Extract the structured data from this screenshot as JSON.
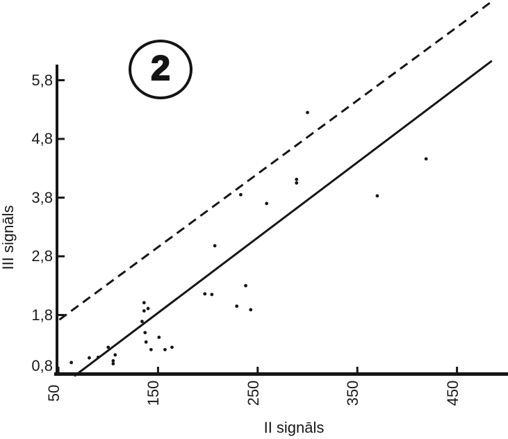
{
  "figure": {
    "badge_label": "2"
  },
  "chart_data": {
    "type": "scatter",
    "title": "",
    "xlabel": "II signāls",
    "ylabel": "III signāls",
    "grid": false,
    "legend": null,
    "ink_color": "#161616",
    "xlim": [
      46,
      501
    ],
    "ylim": [
      0.8,
      6.1
    ],
    "x_ticks": [
      {
        "value": 50,
        "label": "50"
      },
      {
        "value": 150,
        "label": "150"
      },
      {
        "value": 250,
        "label": "250"
      },
      {
        "value": 350,
        "label": "350"
      },
      {
        "value": 450,
        "label": "450"
      }
    ],
    "y_ticks": [
      {
        "value": 5.8,
        "label": "5,8"
      },
      {
        "value": 4.8,
        "label": "4,8"
      },
      {
        "value": 3.8,
        "label": "3,8"
      },
      {
        "value": 2.8,
        "label": "2,8"
      },
      {
        "value": 1.8,
        "label": "1,8"
      },
      {
        "value": 0.8,
        "label": "0,8"
      }
    ],
    "points": [
      [
        63,
        0.99
      ],
      [
        81,
        1.07
      ],
      [
        90,
        1.08
      ],
      [
        100,
        1.25
      ],
      [
        105,
        1.02
      ],
      [
        105,
        0.97
      ],
      [
        107,
        1.12
      ],
      [
        134,
        1.69
      ],
      [
        136,
        2.01
      ],
      [
        136,
        1.87
      ],
      [
        137,
        1.5
      ],
      [
        138,
        1.34
      ],
      [
        140,
        1.91
      ],
      [
        143,
        1.21
      ],
      [
        151,
        1.42
      ],
      [
        157,
        1.21
      ],
      [
        164,
        1.25
      ],
      [
        197,
        2.16
      ],
      [
        204,
        2.15
      ],
      [
        207,
        2.98
      ],
      [
        229,
        1.95
      ],
      [
        233,
        3.85
      ],
      [
        238,
        2.3
      ],
      [
        243,
        1.89
      ],
      [
        259,
        3.7
      ],
      [
        289,
        4.11
      ],
      [
        289,
        4.05
      ],
      [
        300,
        5.25
      ],
      [
        370,
        3.83
      ],
      [
        419,
        4.46
      ]
    ],
    "lines": [
      {
        "name": "solid-trend-line",
        "style": "solid",
        "from": [
          66,
          0.76
        ],
        "to": [
          485,
          6.13
        ]
      },
      {
        "name": "dashed-upper-line",
        "style": "dashed",
        "from": [
          51,
          1.72
        ],
        "to": [
          484,
          7.13
        ]
      }
    ]
  }
}
